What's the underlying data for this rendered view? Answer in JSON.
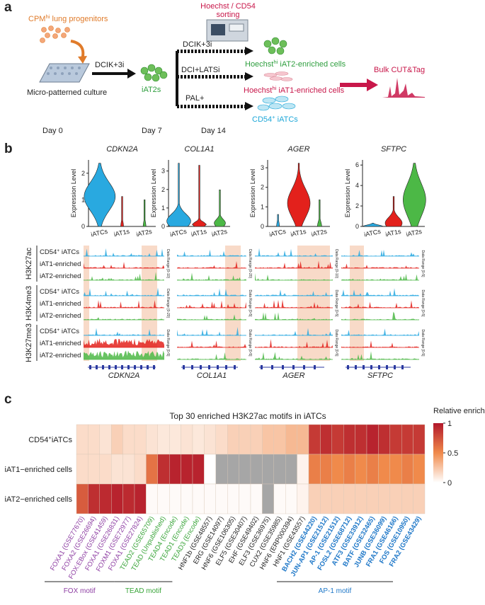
{
  "panel_a": {
    "label": "a",
    "progenitors": {
      "main": "CPM",
      "sup": "hi",
      "rest": " lung progenitors"
    },
    "culture": "Micro-patterned culture",
    "step1": "DCIK+3i",
    "iat2s": "iAT2s",
    "sorting": [
      "Hoechst / CD54",
      "sorting"
    ],
    "treatments": [
      "DCIK+3i",
      "DCI+LATSi",
      "PAL+"
    ],
    "outputs": [
      {
        "main": "Hoechst",
        "sup": "hi",
        "rest": " iAT2-enriched cells",
        "color": "#2e9e3e"
      },
      {
        "main": "Hoechst",
        "sup": "hi",
        "rest": " iAT1-enriched cells",
        "color": "#c8174a"
      },
      {
        "main": "CD54",
        "sup": "+",
        "rest": " iATCs",
        "color": "#1ea7d8"
      }
    ],
    "assay": "Bulk CUT&Tag",
    "days": [
      "Day 0",
      "Day 7",
      "Day 14"
    ]
  },
  "panel_b": {
    "label": "b",
    "y_label": "Expression Level",
    "groups": [
      "iATCs",
      "iAT1s",
      "iAT2s"
    ],
    "colors": [
      "#29a9e0",
      "#e3211c",
      "#4cb846"
    ],
    "violins": [
      {
        "gene": "CDKN2A",
        "ylim": [
          0,
          2.5
        ],
        "yticks": [
          0,
          1,
          2
        ]
      },
      {
        "gene": "COL1A1",
        "ylim": [
          0,
          3.6
        ],
        "yticks": [
          0,
          1,
          2,
          3
        ]
      },
      {
        "gene": "AGER",
        "ylim": [
          0,
          3.4
        ],
        "yticks": [
          0,
          1,
          2,
          3
        ]
      },
      {
        "gene": "SFTPC",
        "ylim": [
          0,
          6.5
        ],
        "yticks": [
          0,
          2,
          4,
          6
        ]
      }
    ],
    "marks": [
      "H3K27ac",
      "H3K4me3",
      "H3K27me3"
    ],
    "samples": [
      {
        "main": "CD54",
        "sup": "+",
        "rest": " iATCs"
      },
      {
        "main": "iAT1-enriched"
      },
      {
        "main": "iAT2-enriched"
      }
    ],
    "loci": [
      {
        "gene": "CDKN2A",
        "ranges": [
          "Data Range [0-10]",
          "Data Range [0-20]",
          "Data Range [0-5]"
        ]
      },
      {
        "gene": "COL1A1",
        "ranges": [
          "Data Range [0-20]",
          "Data Range [0-5]",
          "Data Range [0-5]"
        ]
      },
      {
        "gene": "AGER",
        "ranges": [
          "Data Range [0-10]",
          "Data Range [0-5]",
          "Data Range [0-5]"
        ]
      },
      {
        "gene": "SFTPC",
        "ranges": [
          "Data Range [0-5]",
          "Data Range [0-5]",
          "Data Range [0-5]"
        ]
      }
    ]
  },
  "panel_c": {
    "label": "c",
    "title": "Top 30 enriched H3K27ac motifs in iATCs",
    "rows": [
      {
        "main": "CD54",
        "sup": "+",
        "rest": "iATCs"
      },
      {
        "main": "iAT1−enriched cells"
      },
      {
        "main": "iAT2−enriched cells"
      }
    ],
    "columns": [
      {
        "label": "FOXA1 (GSE77670)",
        "color": "#8e3fa3"
      },
      {
        "label": "FOXA2 (GSE26694)",
        "color": "#8e3fa3"
      },
      {
        "label": "FOX:EBox (GSE41459)",
        "color": "#8e3fa3"
      },
      {
        "label": "FOXA1 (GSE26831)",
        "color": "#8e3fa3"
      },
      {
        "label": "FOXM1 (GSE72977)",
        "color": "#8e3fa3"
      },
      {
        "label": "FOXA1 (GSE27824)",
        "color": "#8e3fa3"
      },
      {
        "label": "TEAD2 (GSE65709)",
        "color": "#3aa53a"
      },
      {
        "label": "TEAD (Unpublished)",
        "color": "#3aa53a"
      },
      {
        "label": "TEAD4 (Encode)",
        "color": "#3aa53a"
      },
      {
        "label": "TEAD1 (Encode)",
        "color": "#3aa53a"
      },
      {
        "label": "TEAD3 (Encode)",
        "color": "#3aa53a"
      },
      {
        "label": "HNF1b (GSE48557)",
        "color": "#222222"
      },
      {
        "label": "ERG (GSE14097)",
        "color": "#222222"
      },
      {
        "label": "HNF6 (GSE106305)",
        "color": "#222222"
      },
      {
        "label": "ELF5 (GSE30407)",
        "color": "#222222"
      },
      {
        "label": "EHF (GSE49402)",
        "color": "#222222"
      },
      {
        "label": "ELF3 (GSE36975)",
        "color": "#222222"
      },
      {
        "label": "CUX2 (GSE35985)",
        "color": "#222222"
      },
      {
        "label": "HNF6 (ERP000394)",
        "color": "#222222"
      },
      {
        "label": "HNF1 (GSE43557)",
        "color": "#222222"
      },
      {
        "label": "BACH2 (GSE44220)",
        "color": "#1f78c8"
      },
      {
        "label": "JUN-AP1 (GSE21512)",
        "color": "#1f78c8"
      },
      {
        "label": "AP-1 (GSE21512)",
        "color": "#1f78c8"
      },
      {
        "label": "FOSL2 (GSE68712)",
        "color": "#1f78c8"
      },
      {
        "label": "ATF3 (GSE33912)",
        "color": "#1f78c8"
      },
      {
        "label": "BATF (GSE32465)",
        "color": "#1f78c8"
      },
      {
        "label": "JUNB (GSE36099)",
        "color": "#1f78c8"
      },
      {
        "label": "FRA1 (GSE46166)",
        "color": "#1f78c8"
      },
      {
        "label": "FOS (GSE10950)",
        "color": "#1f78c8"
      },
      {
        "label": "FRA2 (GSE43429)",
        "color": "#1f78c8"
      }
    ],
    "values": [
      [
        0.15,
        0.15,
        0.12,
        0.2,
        0.15,
        0.15,
        0.12,
        0.1,
        0.1,
        0.12,
        0.1,
        0.12,
        0.15,
        0.2,
        0.2,
        0.2,
        0.25,
        0.25,
        0.3,
        0.3,
        0.85,
        0.9,
        0.85,
        0.9,
        0.9,
        0.95,
        0.9,
        0.85,
        0.85,
        0.85
      ],
      [
        0.15,
        0.15,
        0.15,
        0.12,
        0.12,
        0.15,
        0.6,
        0.9,
        0.95,
        0.95,
        0.95,
        0,
        null,
        null,
        null,
        null,
        null,
        null,
        null,
        0.05,
        0.55,
        0.55,
        0.5,
        0.55,
        0.5,
        0.55,
        0.5,
        0.5,
        0.55,
        0.5
      ],
      [
        0.7,
        0.9,
        0.92,
        0.95,
        0.92,
        0.95,
        0.02,
        0.02,
        0.02,
        0.02,
        0.02,
        0.02,
        0.02,
        0.02,
        0.02,
        0.02,
        null,
        0.02,
        0.02,
        0.05,
        0.2,
        0.2,
        0.2,
        0.2,
        0.2,
        0.2,
        0.2,
        0.2,
        0.2,
        0.2
      ]
    ],
    "colorscale": [
      "#ffffff",
      "#f08a4b",
      "#b2182b"
    ],
    "null_color": "#a6a6a6",
    "legend_title": "Relative enrichment",
    "clim": [
      0,
      1
    ],
    "cticks": [
      0,
      0.5,
      1
    ],
    "groups": [
      {
        "name": "FOX motif",
        "color": "#8e3fa3",
        "bold": false
      },
      {
        "name": "TEAD motif",
        "color": "#3aa53a",
        "bold": false
      },
      {
        "name": "AP-1 motif",
        "color": "#1f78c8",
        "bold": true
      }
    ]
  }
}
